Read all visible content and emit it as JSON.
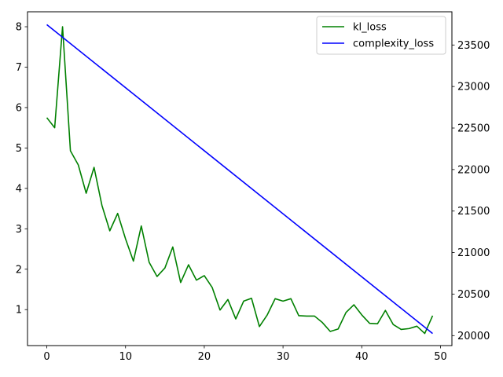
{
  "chart_data": {
    "type": "line",
    "title": "",
    "xlabel": "",
    "ylabel": "",
    "y2label": "",
    "grid": false,
    "legend_position": "top-right",
    "xlim": [
      -2.45,
      51.45
    ],
    "ylim": [
      0.11,
      8.37
    ],
    "y2lim": [
      19880,
      23900
    ],
    "x_ticks": [
      0,
      10,
      20,
      30,
      40,
      50
    ],
    "y_ticks": [
      1,
      2,
      3,
      4,
      5,
      6,
      7,
      8
    ],
    "y2_ticks": [
      20000,
      20500,
      21000,
      21500,
      22000,
      22500,
      23000,
      23500
    ],
    "series": [
      {
        "name": "kl_loss",
        "axis": "left",
        "color": "#008000",
        "x": [
          0,
          1,
          2,
          3,
          4,
          5,
          6,
          7,
          8,
          9,
          10,
          11,
          12,
          13,
          14,
          15,
          16,
          17,
          18,
          19,
          20,
          21,
          22,
          23,
          24,
          25,
          26,
          27,
          28,
          29,
          30,
          31,
          32,
          33,
          34,
          35,
          36,
          37,
          38,
          39,
          40,
          41,
          42,
          43,
          44,
          45,
          46,
          47,
          48,
          49
        ],
        "values": [
          5.75,
          5.5,
          8.0,
          4.93,
          4.58,
          3.88,
          4.52,
          3.58,
          2.95,
          3.38,
          2.75,
          2.2,
          3.07,
          2.17,
          1.82,
          2.03,
          2.55,
          1.67,
          2.11,
          1.73,
          1.84,
          1.55,
          0.99,
          1.25,
          0.77,
          1.21,
          1.28,
          0.58,
          0.87,
          1.27,
          1.21,
          1.27,
          0.85,
          0.84,
          0.84,
          0.68,
          0.46,
          0.52,
          0.93,
          1.12,
          0.87,
          0.66,
          0.65,
          0.98,
          0.63,
          0.51,
          0.53,
          0.59,
          0.41,
          0.85
        ]
      },
      {
        "name": "complexity_loss",
        "axis": "right",
        "color": "#0000ff",
        "x": [
          0,
          49
        ],
        "values": [
          23745,
          20025
        ]
      }
    ]
  }
}
